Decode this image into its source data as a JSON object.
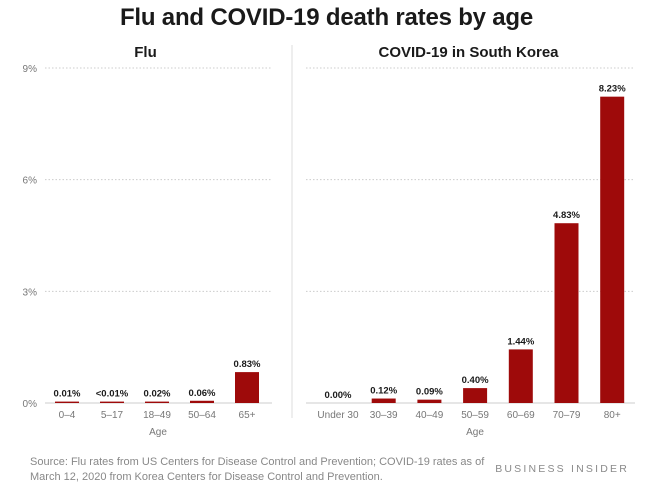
{
  "title": "Flu and COVID-19 death rates by age",
  "footer": {
    "source": "Source: Flu rates from US Centers for Disease Control and Prevention; COVID-19 rates as of March 12, 2020 from Korea Centers for Disease Control and Prevention.",
    "brand": "BUSINESS INSIDER"
  },
  "colors": {
    "bar": "#9e0a0a",
    "grid": "#cccccc",
    "axis_text": "#777777"
  },
  "chart_data": [
    {
      "type": "bar",
      "title": "Flu",
      "xlabel": "Age",
      "ylabel": "",
      "ylim": [
        0,
        9
      ],
      "yticks": [
        0,
        3,
        6,
        9
      ],
      "ytick_labels": [
        "0%",
        "3%",
        "6%",
        "9%"
      ],
      "grid": true,
      "categories": [
        "0–4",
        "5–17",
        "18–49",
        "50–64",
        "65+"
      ],
      "values": [
        0.01,
        0.005,
        0.02,
        0.06,
        0.83
      ],
      "data_labels": [
        "0.01%",
        "<0.01%",
        "0.02%",
        "0.06%",
        "0.83%"
      ]
    },
    {
      "type": "bar",
      "title": "COVID-19 in South Korea",
      "xlabel": "Age",
      "ylabel": "",
      "ylim": [
        0,
        9
      ],
      "grid": true,
      "categories": [
        "Under 30",
        "30–39",
        "40–49",
        "50–59",
        "60–69",
        "70–79",
        "80+"
      ],
      "values": [
        0.0,
        0.12,
        0.09,
        0.4,
        1.44,
        4.83,
        8.23
      ],
      "data_labels": [
        "0.00%",
        "0.12%",
        "0.09%",
        "0.40%",
        "1.44%",
        "4.83%",
        "8.23%"
      ]
    }
  ]
}
